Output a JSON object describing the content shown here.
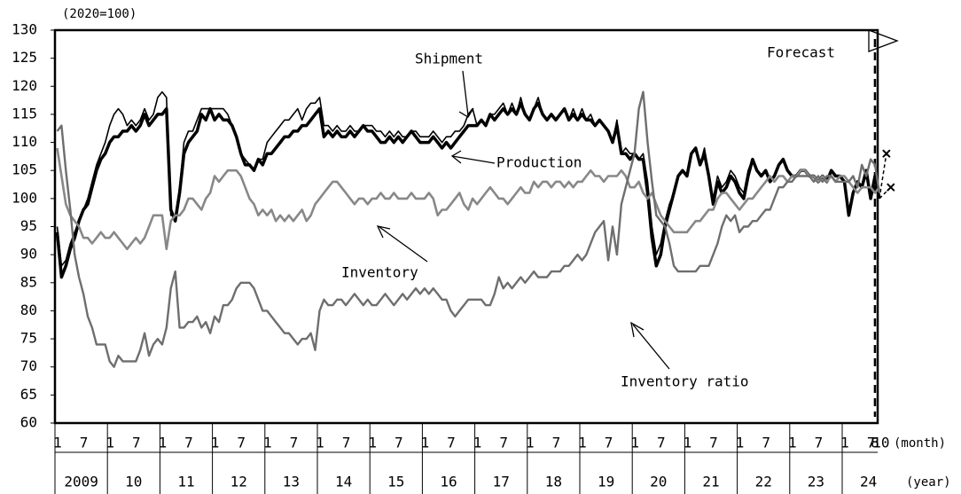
{
  "chart_data": {
    "type": "line",
    "unit_label": "(2020=100)",
    "ylim": [
      60,
      130
    ],
    "yticks": [
      60,
      65,
      70,
      75,
      80,
      85,
      90,
      95,
      100,
      105,
      110,
      115,
      120,
      125,
      130
    ],
    "years": [
      "2009",
      "10",
      "11",
      "12",
      "13",
      "14",
      "15",
      "16",
      "17",
      "18",
      "19",
      "20",
      "21",
      "22",
      "23",
      "24"
    ],
    "month_labels": [
      "1",
      "7"
    ],
    "end_month_labels": [
      "8",
      "10"
    ],
    "month_axis_label": "(month)",
    "year_axis_label": "(year)",
    "forecast_label": "Forecast",
    "forecast_start": 189,
    "annotations": [
      "Shipment",
      "Production",
      "Inventory",
      "Inventory ratio"
    ],
    "series": [
      {
        "name": "Production",
        "color": "#000000",
        "values": [
          94,
          86,
          88,
          91,
          93,
          96,
          98,
          99,
          102,
          105,
          107,
          108,
          110,
          111,
          111,
          112,
          112,
          113,
          112,
          113,
          115,
          113,
          114,
          115,
          115,
          116,
          98,
          96,
          101,
          108,
          110,
          111,
          112,
          115,
          114,
          116,
          114,
          115,
          114,
          114,
          113,
          111,
          108,
          106,
          106,
          105,
          107,
          106,
          108,
          108,
          109,
          110,
          111,
          111,
          112,
          112,
          113,
          113,
          114,
          115,
          116,
          111,
          112,
          111,
          112,
          111,
          111,
          112,
          111,
          112,
          113,
          112,
          112,
          111,
          110,
          110,
          111,
          110,
          111,
          110,
          111,
          112,
          111,
          110,
          110,
          110,
          111,
          110,
          109,
          110,
          109,
          110,
          111,
          112,
          113,
          113,
          113,
          114,
          113,
          115,
          114,
          115,
          116,
          115,
          116,
          115,
          117,
          115,
          114,
          116,
          117,
          115,
          114,
          115,
          114,
          115,
          116,
          114,
          115,
          114,
          115,
          114,
          114,
          113,
          114,
          113,
          112,
          110,
          113,
          108,
          108,
          107,
          108,
          107,
          107,
          101,
          93,
          88,
          90,
          95,
          98,
          101,
          104,
          105,
          104,
          108,
          109,
          106,
          108,
          104,
          99,
          103,
          101,
          102,
          104,
          103,
          101,
          100,
          104,
          107,
          105,
          104,
          105,
          103,
          104,
          106,
          107,
          105,
          104,
          104,
          105,
          105,
          104,
          104,
          103,
          104,
          103,
          105,
          104,
          104,
          103,
          97,
          101,
          103,
          102,
          105,
          100,
          104,
          100,
          108,
          102
        ]
      },
      {
        "name": "Shipment",
        "color": "#000000",
        "values": [
          95,
          88,
          89,
          92,
          94,
          96,
          98,
          100,
          103,
          106,
          108,
          110,
          113,
          115,
          116,
          115,
          113,
          114,
          113,
          114,
          116,
          114,
          115,
          118,
          119,
          118,
          97,
          97,
          102,
          110,
          112,
          112,
          114,
          116,
          116,
          116,
          116,
          116,
          116,
          115,
          113,
          111,
          108,
          107,
          106,
          105,
          107,
          107,
          110,
          111,
          112,
          113,
          114,
          114,
          115,
          116,
          114,
          116,
          117,
          117,
          118,
          113,
          113,
          112,
          113,
          112,
          112,
          113,
          112,
          112,
          113,
          113,
          113,
          112,
          112,
          111,
          112,
          111,
          112,
          111,
          111,
          112,
          112,
          111,
          111,
          111,
          112,
          111,
          110,
          111,
          111,
          112,
          112,
          113,
          115,
          116,
          113,
          114,
          113,
          115,
          115,
          116,
          117,
          115,
          117,
          115,
          118,
          115,
          114,
          116,
          118,
          115,
          114,
          115,
          114,
          115,
          116,
          114,
          116,
          114,
          116,
          114,
          115,
          113,
          114,
          113,
          112,
          110,
          114,
          108,
          109,
          108,
          108,
          107,
          108,
          103,
          95,
          90,
          92,
          96,
          99,
          101,
          104,
          105,
          104,
          108,
          109,
          106,
          109,
          104,
          100,
          104,
          102,
          103,
          105,
          104,
          102,
          101,
          105,
          107,
          105,
          104,
          105,
          103,
          104,
          106,
          107,
          105,
          104,
          104,
          105,
          105,
          104,
          104,
          103,
          104,
          103,
          105,
          104,
          104,
          103,
          98,
          101,
          103,
          102,
          104,
          101,
          103,
          101,
          null,
          null
        ]
      },
      {
        "name": "Inventory",
        "color": "#888888",
        "values": [
          109,
          104,
          99,
          97,
          96,
          95,
          93,
          93,
          92,
          93,
          94,
          93,
          93,
          94,
          93,
          92,
          91,
          92,
          93,
          92,
          93,
          95,
          97,
          97,
          97,
          91,
          96,
          97,
          97,
          98,
          100,
          100,
          99,
          98,
          100,
          101,
          104,
          103,
          104,
          105,
          105,
          105,
          104,
          102,
          100,
          99,
          97,
          98,
          97,
          98,
          96,
          97,
          96,
          97,
          96,
          97,
          98,
          96,
          97,
          99,
          100,
          101,
          102,
          103,
          103,
          102,
          101,
          100,
          99,
          100,
          100,
          99,
          100,
          100,
          101,
          100,
          100,
          101,
          100,
          100,
          100,
          101,
          100,
          100,
          100,
          101,
          100,
          97,
          98,
          98,
          99,
          100,
          101,
          99,
          98,
          100,
          99,
          100,
          101,
          102,
          101,
          100,
          100,
          99,
          100,
          101,
          102,
          101,
          101,
          103,
          102,
          103,
          103,
          102,
          103,
          103,
          102,
          103,
          102,
          103,
          103,
          104,
          105,
          104,
          104,
          103,
          104,
          104,
          104,
          105,
          104,
          102,
          102,
          103,
          101,
          100,
          101,
          99,
          97,
          96,
          95,
          94,
          94,
          94,
          94,
          95,
          96,
          96,
          97,
          98,
          98,
          100,
          101,
          101,
          100,
          99,
          98,
          99,
          100,
          100,
          101,
          102,
          103,
          104,
          103,
          104,
          104,
          103,
          104,
          104,
          105,
          105,
          104,
          104,
          103,
          104,
          103,
          104,
          103,
          104,
          104,
          103,
          102,
          101,
          102,
          102,
          102,
          101,
          102,
          null,
          null
        ]
      },
      {
        "name": "Inventory ratio",
        "color": "#6e6e6e",
        "values": [
          112,
          113,
          105,
          98,
          90,
          86,
          83,
          79,
          77,
          74,
          74,
          74,
          71,
          70,
          72,
          71,
          71,
          71,
          71,
          73,
          76,
          72,
          74,
          75,
          74,
          77,
          84,
          87,
          77,
          77,
          78,
          78,
          79,
          77,
          78,
          76,
          79,
          78,
          81,
          81,
          82,
          84,
          85,
          85,
          85,
          84,
          82,
          80,
          80,
          79,
          78,
          77,
          76,
          76,
          75,
          74,
          75,
          75,
          76,
          73,
          80,
          82,
          81,
          81,
          82,
          82,
          81,
          82,
          83,
          82,
          81,
          82,
          81,
          81,
          82,
          83,
          82,
          81,
          82,
          83,
          82,
          83,
          84,
          83,
          84,
          83,
          84,
          83,
          82,
          82,
          80,
          79,
          80,
          81,
          82,
          82,
          82,
          82,
          81,
          81,
          83,
          86,
          84,
          85,
          84,
          85,
          86,
          85,
          86,
          87,
          86,
          86,
          86,
          87,
          87,
          87,
          88,
          88,
          89,
          90,
          89,
          90,
          92,
          94,
          95,
          96,
          89,
          95,
          90,
          99,
          102,
          105,
          108,
          116,
          119,
          110,
          103,
          97,
          96,
          95,
          92,
          88,
          87,
          87,
          87,
          87,
          87,
          88,
          88,
          88,
          90,
          92,
          95,
          97,
          96,
          97,
          94,
          95,
          95,
          96,
          96,
          97,
          98,
          98,
          100,
          102,
          102,
          103,
          103,
          104,
          104,
          104,
          104,
          103,
          104,
          103,
          104,
          104,
          103,
          103,
          103,
          103,
          104,
          102,
          106,
          104,
          107,
          106,
          101,
          null,
          null
        ]
      }
    ]
  }
}
